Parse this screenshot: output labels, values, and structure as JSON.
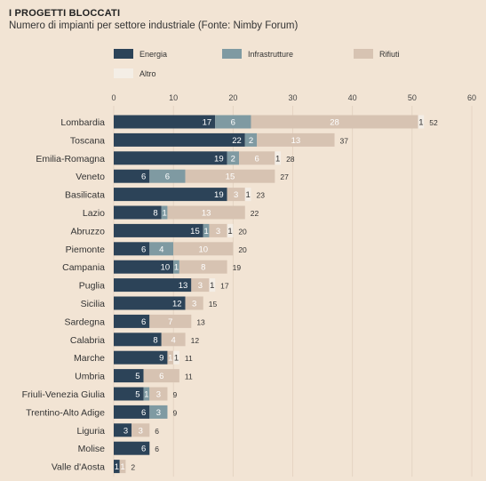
{
  "header": {
    "title": "I PROGETTI BLOCCATI",
    "subtitle": "Numero di impianti per settore industriale (Fonte: Nimby Forum)"
  },
  "colors": {
    "background": "#f2e4d4",
    "Energia": "#2c4358",
    "Infrastrutture": "#7f9aa2",
    "Rifiuti": "#d7c3b2",
    "Altro": "#f4eee6"
  },
  "chart_data": {
    "type": "bar",
    "orientation": "horizontal",
    "stacked": true,
    "title": "I PROGETTI BLOCCATI",
    "subtitle": "Numero di impianti per settore industriale (Fonte: Nimby Forum)",
    "xlim": [
      0,
      60
    ],
    "xticks": [
      0,
      10,
      20,
      30,
      40,
      50,
      60
    ],
    "grid": true,
    "legend_position": "top",
    "categories": [
      "Lombardia",
      "Toscana",
      "Emilia-Romagna",
      "Veneto",
      "Basilicata",
      "Lazio",
      "Abruzzo",
      "Piemonte",
      "Campania",
      "Puglia",
      "Sicilia",
      "Sardegna",
      "Calabria",
      "Marche",
      "Umbria",
      "Friuli-Venezia Giulia",
      "Trentino-Alto Adige",
      "Liguria",
      "Molise",
      "Valle d'Aosta"
    ],
    "series": [
      {
        "name": "Energia",
        "values": [
          17,
          22,
          19,
          6,
          19,
          8,
          15,
          6,
          10,
          13,
          12,
          6,
          8,
          9,
          5,
          5,
          6,
          3,
          6,
          1
        ]
      },
      {
        "name": "Infrastrutture",
        "values": [
          6,
          2,
          2,
          6,
          0,
          1,
          1,
          4,
          1,
          0,
          0,
          0,
          0,
          0,
          0,
          1,
          3,
          0,
          0,
          0
        ]
      },
      {
        "name": "Rifiuti",
        "values": [
          28,
          13,
          6,
          15,
          3,
          13,
          3,
          10,
          8,
          3,
          3,
          7,
          4,
          1,
          6,
          3,
          0,
          3,
          0,
          1
        ]
      },
      {
        "name": "Altro",
        "values": [
          1,
          0,
          1,
          0,
          1,
          0,
          1,
          0,
          0,
          1,
          0,
          0,
          0,
          1,
          0,
          0,
          0,
          0,
          0,
          0
        ]
      }
    ],
    "totals": [
      52,
      37,
      28,
      27,
      23,
      22,
      20,
      20,
      19,
      17,
      15,
      13,
      12,
      11,
      11,
      9,
      9,
      6,
      6,
      2
    ]
  }
}
